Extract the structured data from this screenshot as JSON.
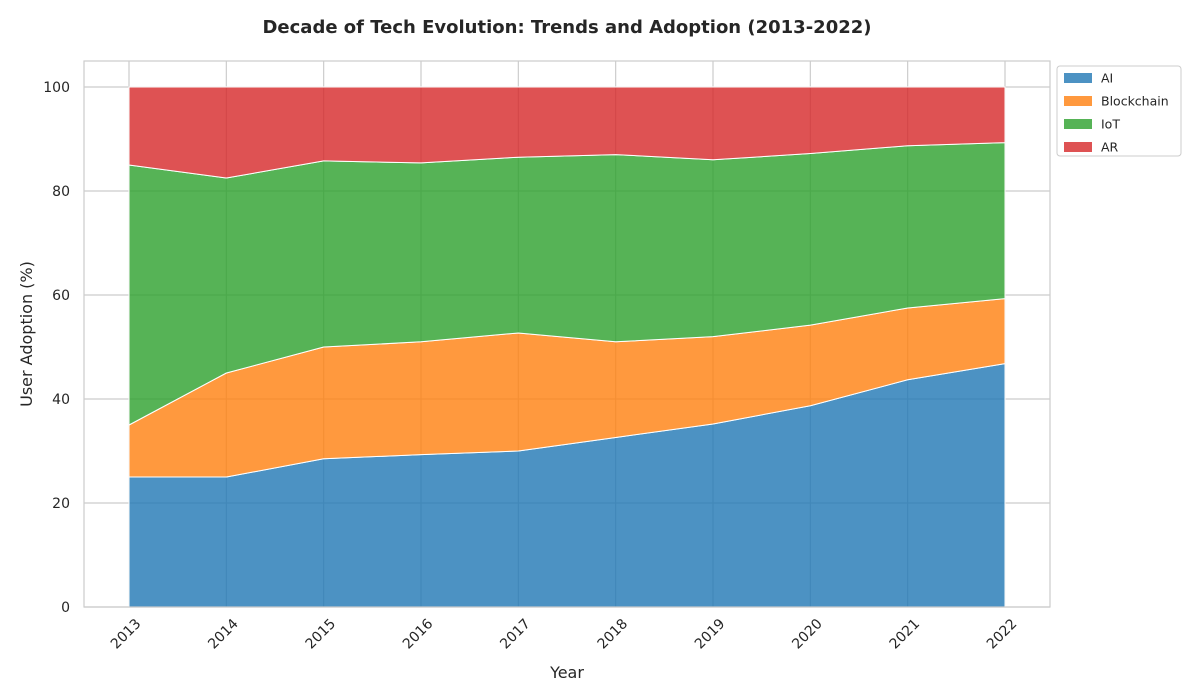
{
  "chart_data": {
    "type": "area",
    "stacked": true,
    "title": "Decade of Tech Evolution: Trends and Adoption (2013-2022)",
    "xlabel": "Year",
    "ylabel": "User Adoption (%)",
    "x": [
      "2013",
      "2014",
      "2015",
      "2016",
      "2017",
      "2018",
      "2019",
      "2020",
      "2021",
      "2022"
    ],
    "ylim": [
      0,
      105
    ],
    "yticks": [
      "0",
      "20",
      "40",
      "60",
      "80",
      "100"
    ],
    "grid": true,
    "legend_position": "outside-top-right",
    "series": [
      {
        "name": "AI",
        "color": "#1f77b4",
        "values": [
          25.0,
          25.0,
          28.5,
          29.3,
          30.0,
          32.6,
          35.2,
          38.7,
          43.7,
          46.8
        ]
      },
      {
        "name": "Blockchain",
        "color": "#ff7f0e",
        "values": [
          10.0,
          20.0,
          21.5,
          21.7,
          22.7,
          18.4,
          16.8,
          15.5,
          13.8,
          12.5
        ]
      },
      {
        "name": "IoT",
        "color": "#2ca02c",
        "values": [
          50.0,
          37.5,
          35.8,
          34.4,
          33.8,
          36.0,
          34.0,
          33.0,
          31.2,
          30.0
        ]
      },
      {
        "name": "AR",
        "color": "#d62728",
        "values": [
          15.0,
          17.5,
          14.2,
          14.6,
          13.5,
          13.0,
          14.0,
          12.8,
          11.3,
          10.7
        ]
      }
    ]
  }
}
